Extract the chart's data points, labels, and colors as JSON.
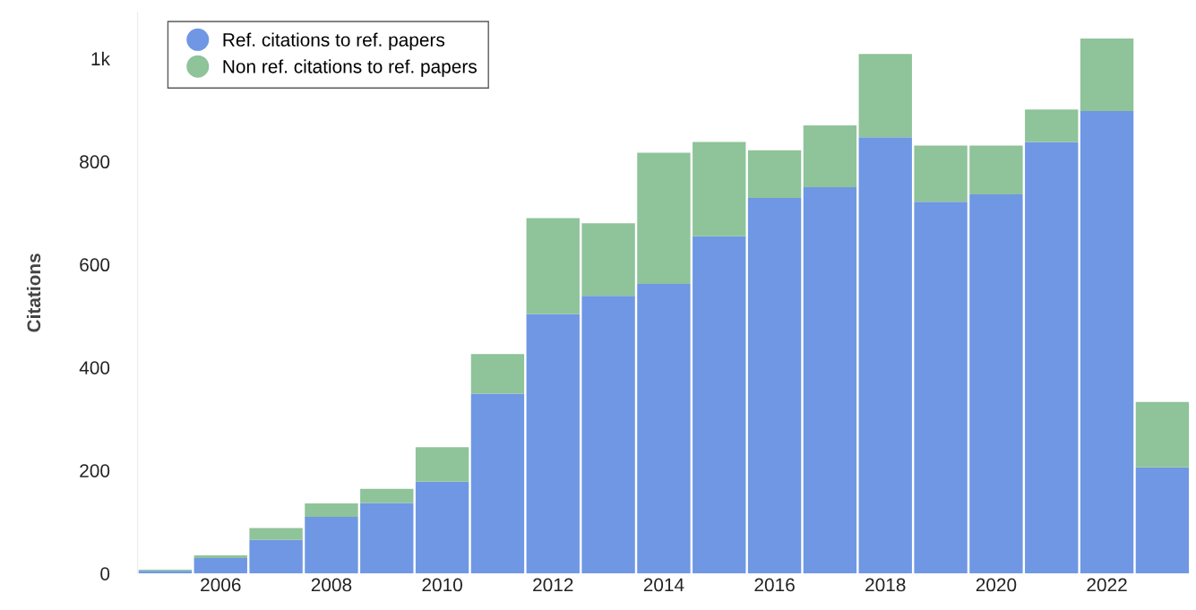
{
  "chart_data": {
    "type": "bar",
    "stacked": true,
    "ylabel": "Citations",
    "x": [
      2005,
      2006,
      2007,
      2008,
      2009,
      2010,
      2011,
      2012,
      2013,
      2014,
      2015,
      2016,
      2017,
      2018,
      2019,
      2020,
      2021,
      2022,
      2023
    ],
    "series": [
      {
        "name": "Ref. citations to ref. papers",
        "color": "#6f97e3",
        "values": [
          5,
          30,
          65,
          110,
          137,
          178,
          349,
          504,
          539,
          562,
          655,
          729,
          750,
          847,
          722,
          736,
          838,
          898,
          206
        ]
      },
      {
        "name": "Non ref. citations to ref. papers",
        "color": "#8fc39a",
        "values": [
          2,
          5,
          23,
          26,
          27,
          67,
          77,
          186,
          141,
          255,
          183,
          93,
          120,
          162,
          109,
          95,
          63,
          141,
          127
        ]
      }
    ],
    "xlim": [
      2004.5,
      2023.5
    ],
    "xticks": [
      2006,
      2008,
      2010,
      2012,
      2014,
      2016,
      2018,
      2020,
      2022
    ],
    "ylim": [
      0,
      1090
    ],
    "yticks": [
      0,
      200,
      400,
      600,
      800,
      {
        "value": 1000,
        "label": "1k"
      }
    ],
    "grid": false,
    "legend": "top left",
    "marker": "circle"
  }
}
